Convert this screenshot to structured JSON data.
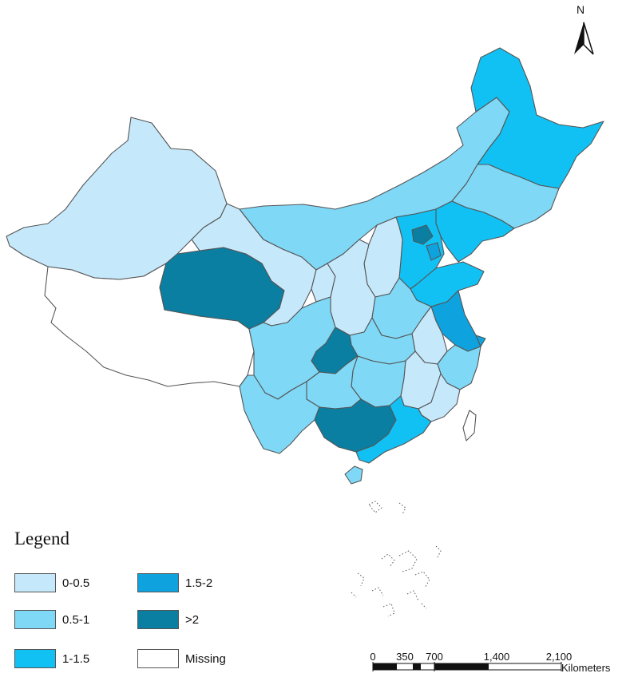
{
  "legend": {
    "title": "Legend",
    "items": [
      {
        "label": "0-0.5",
        "color": "#c6e8fb"
      },
      {
        "label": "0.5-1",
        "color": "#7fd8f6"
      },
      {
        "label": "1-1.5",
        "color": "#12c1f3"
      },
      {
        "label": "1.5-2",
        "color": "#0ea3de"
      },
      {
        "label": ">2",
        "color": "#0a7fa2"
      },
      {
        "label": "Missing",
        "color": "#ffffff"
      }
    ]
  },
  "north_arrow": {
    "label": "N"
  },
  "scale_bar": {
    "ticks": [
      "0",
      "350",
      "700",
      "1,400",
      "2,100"
    ],
    "unit": "Kilometers"
  }
}
